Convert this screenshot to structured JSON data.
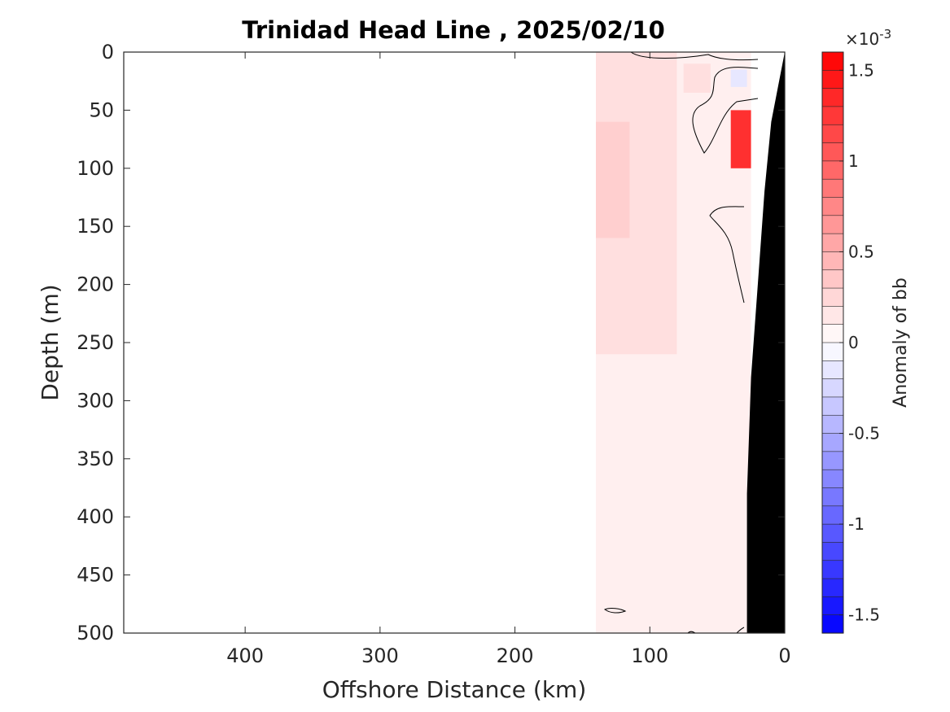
{
  "chart_data": {
    "type": "heatmap",
    "title": "Trinidad Head Line , 2025/02/10",
    "xlabel": "Offshore Distance (km)",
    "ylabel": "Depth (m)",
    "colorbar_label": "Anomaly of bb",
    "colorbar_multiplier": "×10",
    "colorbar_exponent": "-3",
    "xlim": [
      490,
      0
    ],
    "x_reversed": true,
    "ylim": [
      0,
      500
    ],
    "y_reversed": true,
    "x_ticks": [
      400,
      300,
      200,
      100,
      0
    ],
    "x_tick_labels": [
      "400",
      "300",
      "200",
      "100",
      "0"
    ],
    "y_ticks": [
      0,
      50,
      100,
      150,
      200,
      250,
      300,
      350,
      400,
      450,
      500
    ],
    "y_tick_labels": [
      "0",
      "50",
      "100",
      "150",
      "200",
      "250",
      "300",
      "350",
      "400",
      "450",
      "500"
    ],
    "color_range": [
      -1.6,
      1.6
    ],
    "color_levels": 32,
    "colorbar_ticks": [
      1.5,
      1,
      0.5,
      0,
      -0.5,
      -1,
      -1.5
    ],
    "colorbar_tick_labels": [
      "1.5",
      "1",
      "0.5",
      "0",
      "-0.5",
      "-1",
      "-1.5"
    ],
    "colors": {
      "positive": "#ff0000",
      "negative": "#0000ff",
      "zero": "#ffffff",
      "bathymetry": "#000000"
    },
    "anomaly_regions": [
      {
        "x_range": [
          140,
          25
        ],
        "depth_range": [
          0,
          500
        ],
        "value": 0.1
      },
      {
        "x_range": [
          140,
          80
        ],
        "depth_range": [
          0,
          260
        ],
        "value": 0.2
      },
      {
        "x_range": [
          140,
          115
        ],
        "depth_range": [
          60,
          160
        ],
        "value": 0.3
      },
      {
        "x_range": [
          75,
          55
        ],
        "depth_range": [
          10,
          35
        ],
        "value": 0.2
      },
      {
        "x_range": [
          40,
          25
        ],
        "depth_range": [
          50,
          100
        ],
        "value": 1.3
      },
      {
        "x_range": [
          40,
          28
        ],
        "depth_range": [
          15,
          30
        ],
        "value": -0.15
      }
    ],
    "bathymetry": [
      [
        0,
        0
      ],
      [
        5,
        30
      ],
      [
        10,
        60
      ],
      [
        15,
        120
      ],
      [
        20,
        200
      ],
      [
        25,
        280
      ],
      [
        28,
        380
      ],
      [
        28,
        500
      ],
      [
        0,
        500
      ]
    ]
  }
}
